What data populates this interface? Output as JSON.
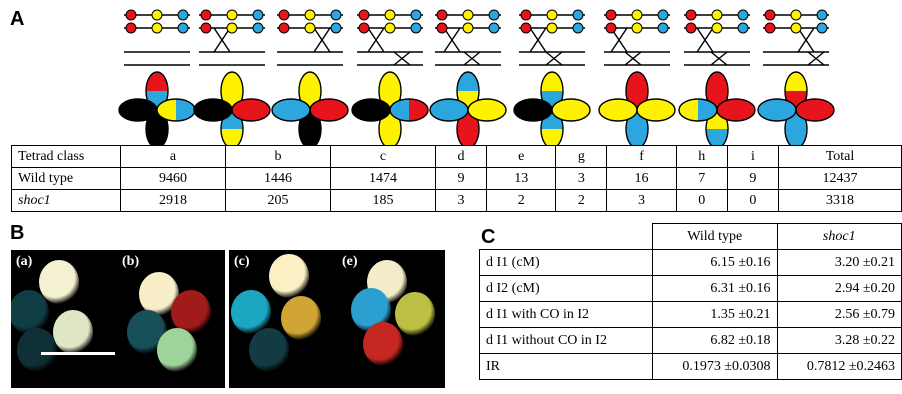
{
  "panels": {
    "a": "A",
    "b": "B",
    "c": "C"
  },
  "tetrad_table": {
    "columns": [
      "Tetrad class",
      "a",
      "b",
      "c",
      "d",
      "e",
      "g",
      "f",
      "h",
      "i",
      "Total"
    ],
    "rows": [
      {
        "label": "Wild type",
        "italic": false,
        "values": [
          "9460",
          "1446",
          "1474",
          "9",
          "13",
          "3",
          "16",
          "7",
          "9",
          "12437"
        ]
      },
      {
        "label": "shoc1",
        "italic": true,
        "values": [
          "2918",
          "205",
          "185",
          "3",
          "2",
          "2",
          "3",
          "0",
          "0",
          "3318"
        ]
      }
    ]
  },
  "interference_table": {
    "columns": [
      "Wild type",
      "shoc1"
    ],
    "rows": [
      {
        "label": "d I1 (cM)",
        "values": [
          "6.15 ±0.16",
          "3.20 ±0.21"
        ]
      },
      {
        "label": "d I2 (cM)",
        "values": [
          "6.31 ±0.16",
          "2.94 ±0.20"
        ]
      },
      {
        "label": "d I1 with CO in I2",
        "values": [
          "1.35 ±0.21",
          "2.56 ±0.79"
        ]
      },
      {
        "label": "d I1 without CO in I2",
        "values": [
          "6.82 ±0.18",
          "3.28 ±0.22"
        ]
      },
      {
        "label": "IR",
        "values": [
          "0.1973 ±0.0308",
          "0.7812 ±0.2463"
        ]
      }
    ]
  },
  "photos": [
    "(a)",
    "(b)",
    "(c)",
    "(e)"
  ],
  "colors": {
    "red": "#e8141c",
    "yellow": "#fff200",
    "blue": "#2ba6de",
    "black": "#000000"
  }
}
